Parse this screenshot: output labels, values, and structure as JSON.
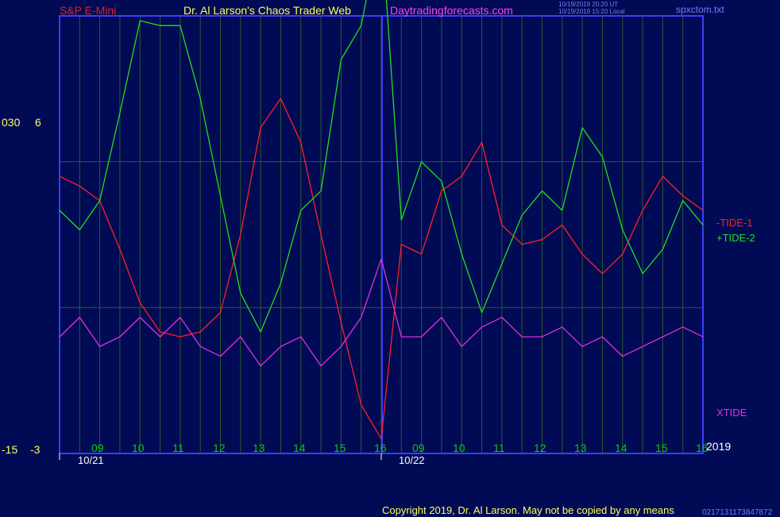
{
  "header": {
    "instrument": "S&P E-Mini",
    "author": "Dr. Al Larson's Chaos Trader Web",
    "site": "Daytradingforecasts.com",
    "stamp_ut": "10/19/2019 20:20 UT",
    "stamp_local": "10/19/2019 15:20 Local",
    "file": "spxctom.txt"
  },
  "left_axis": {
    "label_a_top": "030",
    "label_b_top": "6",
    "label_a_bottom": "-15",
    "label_b_bottom": "-3"
  },
  "x_axis": {
    "hour_ticks": [
      "09",
      "10",
      "11",
      "12",
      "13",
      "14",
      "15",
      "16",
      "09",
      "10",
      "11",
      "12",
      "13",
      "14",
      "15",
      "16"
    ],
    "dates": [
      "10/21",
      "10/22"
    ],
    "year": "2019"
  },
  "series_labels": {
    "tide1": "-TIDE-1",
    "tide2": "+TIDE-2",
    "xtide": "XTIDE"
  },
  "colors": {
    "background": "#000a55",
    "frame": "#3c3cff",
    "grid": "#2e5a2e",
    "tide1": "#ff2020",
    "tide2": "#20e020",
    "xtide": "#e030e0",
    "header_instrument": "#e02020",
    "header_author": "#ffff55",
    "header_site": "#ff40ff",
    "footer": "#ffff55"
  },
  "footer": {
    "copyright": "Copyright 2019, Dr. Al Larson. May not be copied by any means",
    "stamp": "0217131173847872"
  },
  "chart_data": {
    "type": "line",
    "title": "",
    "xlabel": "",
    "ylabel": "",
    "ylim_tides": [
      -3,
      6
    ],
    "ylim_xtide": [
      -15,
      30
    ],
    "x_hours": [
      0,
      0.5,
      1,
      1.5,
      2,
      2.5,
      3,
      3.5,
      4,
      4.5,
      5,
      5.5,
      6,
      6.5,
      7,
      7.5,
      8,
      8.5,
      9,
      9.5,
      10,
      10.5,
      11,
      11.5,
      12,
      12.5,
      13,
      13.5,
      14,
      14.5,
      15,
      15.5,
      16
    ],
    "series": [
      {
        "name": "-TIDE-1",
        "values": [
          2.7,
          2.5,
          2.2,
          1.2,
          0.1,
          -0.5,
          -0.6,
          -0.5,
          -0.1,
          1.5,
          3.7,
          4.3,
          3.4,
          1.5,
          -0.3,
          -2.0,
          -2.7,
          1.3,
          1.1,
          2.4,
          2.7,
          3.4,
          1.7,
          1.3,
          1.4,
          1.7,
          1.1,
          0.7,
          1.1,
          2.0,
          2.7,
          2.3,
          2.0
        ]
      },
      {
        "name": "+TIDE-2",
        "values": [
          2.0,
          1.6,
          2.2,
          4.0,
          5.9,
          5.8,
          5.8,
          4.3,
          2.3,
          0.3,
          -0.5,
          0.5,
          2.0,
          2.4,
          5.1,
          5.8,
          7.9,
          1.8,
          3.0,
          2.6,
          1.1,
          -0.1,
          0.9,
          1.9,
          2.4,
          2.0,
          3.7,
          3.1,
          1.6,
          0.7,
          1.2,
          2.2,
          1.7
        ]
      },
      {
        "name": "XTIDE",
        "values": [
          -3,
          -1,
          -4,
          -3,
          -1,
          -3,
          -1,
          -4,
          -5,
          -3,
          -6,
          -4,
          -3,
          -6,
          -4,
          -1,
          5,
          -3,
          -3,
          -1,
          -4,
          -2,
          -1,
          -3,
          -3,
          -2,
          -4,
          -3,
          -5,
          -4,
          -3,
          -2,
          -3
        ]
      }
    ]
  }
}
